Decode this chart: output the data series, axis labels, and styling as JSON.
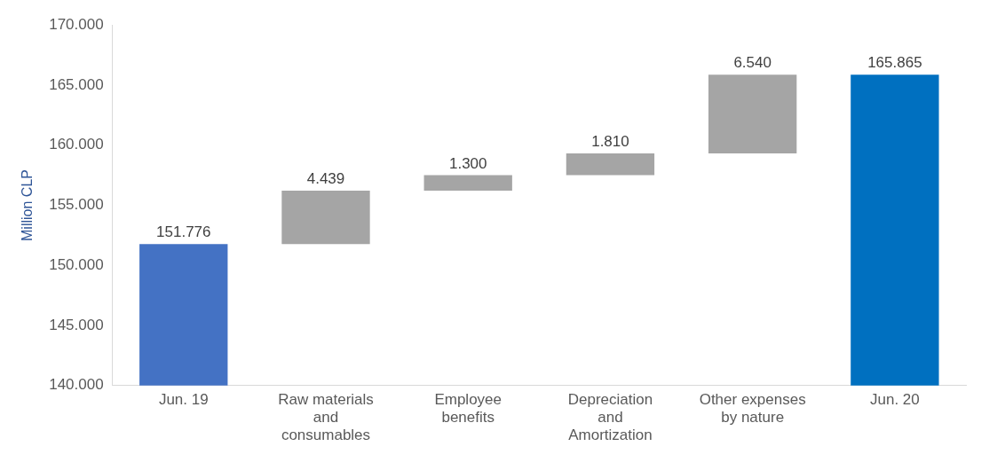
{
  "chart_data": {
    "type": "bar",
    "ylabel": "Million CLP",
    "categories": [
      "Jun. 19",
      "Raw materials and consumables",
      "Employee benefits",
      "Depreciation and Amortization",
      "Other expenses by nature",
      "Jun. 20"
    ],
    "values": [
      151776,
      4439,
      1300,
      1810,
      6540,
      165865
    ],
    "base": [
      0,
      151776,
      156215,
      157515,
      159325,
      0
    ],
    "colors": [
      "#4472c4",
      "#a5a5a5",
      "#a5a5a5",
      "#a5a5a5",
      "#a5a5a5",
      "#0070c0"
    ],
    "value_labels": [
      "151.776",
      "4.439",
      "1.300",
      "1.810",
      "6.540",
      "165.865"
    ],
    "ylim": [
      140000,
      170000
    ],
    "yticks": [
      {
        "value": 140000,
        "label": "140.000"
      },
      {
        "value": 145000,
        "label": "145.000"
      },
      {
        "value": 150000,
        "label": "150.000"
      },
      {
        "value": 155000,
        "label": "155.000"
      },
      {
        "value": 160000,
        "label": "160.000"
      },
      {
        "value": 165000,
        "label": "165.000"
      },
      {
        "value": 170000,
        "label": "170.000"
      }
    ],
    "grid": false,
    "legend": false
  }
}
